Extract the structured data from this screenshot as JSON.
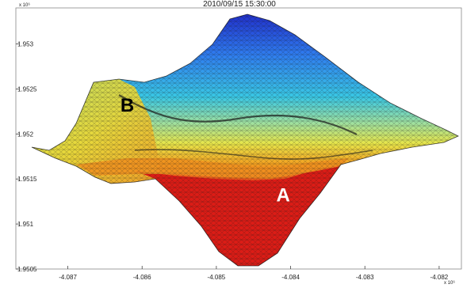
{
  "chart_data": {
    "type": "surface",
    "title": "2010/09/15 15:30:00",
    "x_multiplier_label": "x 10⁶",
    "y_multiplier_label": "x 10⁶",
    "xlim": [
      -4.0877,
      -4.0817
    ],
    "ylim": [
      1.9505,
      1.9534
    ],
    "x_ticks": [
      {
        "value": -4.087,
        "label": "-4.087"
      },
      {
        "value": -4.086,
        "label": "-4.086"
      },
      {
        "value": -4.085,
        "label": "-4.085"
      },
      {
        "value": -4.084,
        "label": "-4.084"
      },
      {
        "value": -4.083,
        "label": "-4.083"
      },
      {
        "value": -4.082,
        "label": "-4.082"
      }
    ],
    "y_ticks": [
      {
        "value": 1.953,
        "label": "1.953"
      },
      {
        "value": 1.9525,
        "label": "1.9525"
      },
      {
        "value": 1.952,
        "label": "1.952"
      },
      {
        "value": 1.9515,
        "label": "1.9515"
      },
      {
        "value": 1.951,
        "label": "1.951"
      },
      {
        "value": 1.9505,
        "label": "1.9505"
      }
    ],
    "colormap": [
      "#1e24c8",
      "#2f7df0",
      "#39c8e6",
      "#9ee0a0",
      "#e8e64a",
      "#f4a020",
      "#e8401a",
      "#d81414"
    ],
    "annotations": [
      {
        "label": "B",
        "x": -4.0862,
        "y": 1.95225,
        "color": "#000000"
      },
      {
        "label": "A",
        "x": -4.0841,
        "y": 1.95125,
        "color": "#ffffff"
      }
    ],
    "grid": false
  }
}
